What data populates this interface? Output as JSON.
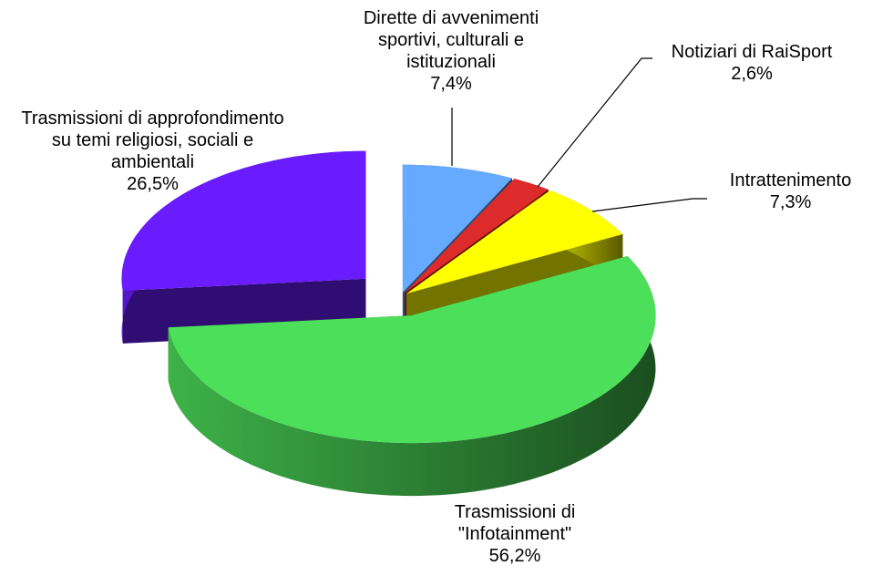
{
  "chart_data": {
    "type": "pie3d",
    "categories": [
      "Dirette di avvenimenti sportivi, culturali e istituzionali",
      "Notiziari di RaiSport",
      "Intrattenimento",
      "Trasmissioni di \"Infotainment\"",
      "Trasmissioni di approfondimento su temi religiosi, sociali e ambientali"
    ],
    "values": [
      7.4,
      2.6,
      7.3,
      56.2,
      26.5
    ],
    "value_labels": [
      "7,4%",
      "2,6%",
      "7,3%",
      "56,2%",
      "26,5%"
    ],
    "colors": [
      "#66aaff",
      "#dd2a2a",
      "#ffff00",
      "#4cdf5a",
      "#6a1cff"
    ]
  }
}
